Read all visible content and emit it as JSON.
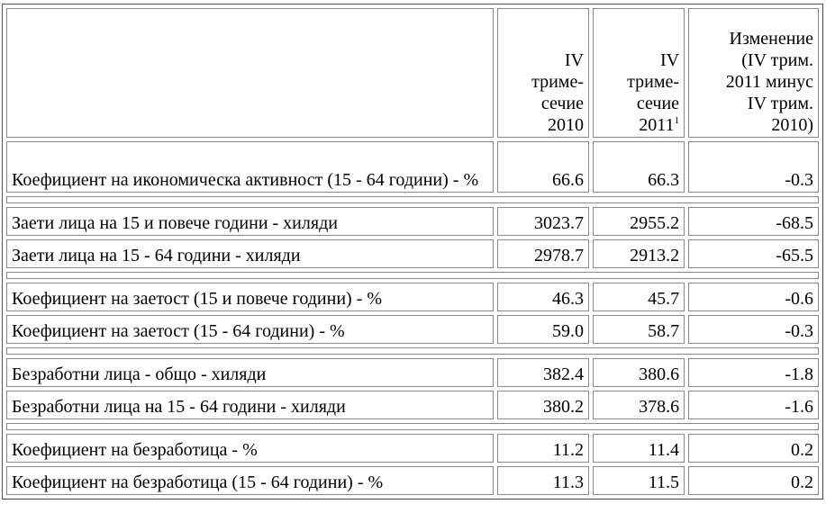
{
  "table": {
    "header": [
      {
        "lines": [
          "IV",
          "триме-",
          "сечие",
          "2010"
        ]
      },
      {
        "lines": [
          "IV",
          "триме-",
          "сечие",
          "2011"
        ],
        "footnote": "1"
      },
      {
        "lines": [
          "Изменение",
          "(IV трим.",
          "2011 минус",
          "IV трим.",
          "2010)"
        ]
      }
    ],
    "groups": [
      [
        [
          "Коефициент на икономическа активност (15 - 64 години) - %",
          "66.6",
          "66.3",
          "-0.3"
        ]
      ],
      [
        [
          "Заети лица на 15 и повече години - хиляди",
          "3023.7",
          "2955.2",
          "-68.5"
        ],
        [
          "Заети лица на 15 - 64 години - хиляди",
          "2978.7",
          "2913.2",
          "-65.5"
        ]
      ],
      [
        [
          "Коефициент на заетост (15 и повече години) - %",
          "46.3",
          "45.7",
          "-0.6"
        ],
        [
          "Коефициент на заетост (15 - 64 години) - %",
          "59.0",
          "58.7",
          "-0.3"
        ]
      ],
      [
        [
          "Безработни лица - общо - хиляди",
          "382.4",
          "380.6",
          "-1.8"
        ],
        [
          "Безработни лица на 15 - 64 години - хиляди",
          "380.2",
          "378.6",
          "-1.6"
        ]
      ],
      [
        [
          "Коефициент на безработица - %",
          "11.2",
          "11.4",
          "0.2"
        ],
        [
          "Коефициент на безработица (15 - 64 години) - %",
          "11.3",
          "11.5",
          "0.2"
        ]
      ]
    ]
  }
}
